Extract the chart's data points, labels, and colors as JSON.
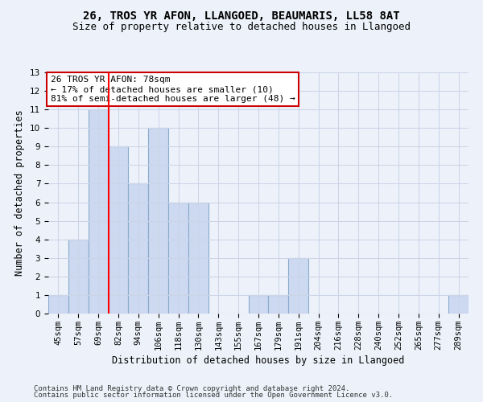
{
  "title": "26, TROS YR AFON, LLANGOED, BEAUMARIS, LL58 8AT",
  "subtitle": "Size of property relative to detached houses in Llangoed",
  "xlabel": "Distribution of detached houses by size in Llangoed",
  "ylabel": "Number of detached properties",
  "categories": [
    "45sqm",
    "57sqm",
    "69sqm",
    "82sqm",
    "94sqm",
    "106sqm",
    "118sqm",
    "130sqm",
    "143sqm",
    "155sqm",
    "167sqm",
    "179sqm",
    "191sqm",
    "204sqm",
    "216sqm",
    "228sqm",
    "240sqm",
    "252sqm",
    "265sqm",
    "277sqm",
    "289sqm"
  ],
  "values": [
    1,
    4,
    11,
    9,
    7,
    10,
    6,
    6,
    0,
    0,
    1,
    1,
    3,
    0,
    0,
    0,
    0,
    0,
    0,
    0,
    1
  ],
  "bar_color": "#ccd9f0",
  "bar_edge_color": "#88aacc",
  "bar_edge_width": 0.8,
  "red_line_x": 2.5,
  "annotation_text": "26 TROS YR AFON: 78sqm\n← 17% of detached houses are smaller (10)\n81% of semi-detached houses are larger (48) →",
  "annotation_box_color": "#ffffff",
  "annotation_box_edge_color": "#cc0000",
  "ylim": [
    0,
    13
  ],
  "yticks": [
    0,
    1,
    2,
    3,
    4,
    5,
    6,
    7,
    8,
    9,
    10,
    11,
    12,
    13
  ],
  "grid_color": "#ccd5e8",
  "background_color": "#edf2fa",
  "footer1": "Contains HM Land Registry data © Crown copyright and database right 2024.",
  "footer2": "Contains public sector information licensed under the Open Government Licence v3.0.",
  "title_fontsize": 10,
  "subtitle_fontsize": 9,
  "xlabel_fontsize": 8.5,
  "ylabel_fontsize": 8.5,
  "tick_fontsize": 7.5,
  "annotation_fontsize": 8,
  "footer_fontsize": 6.5
}
